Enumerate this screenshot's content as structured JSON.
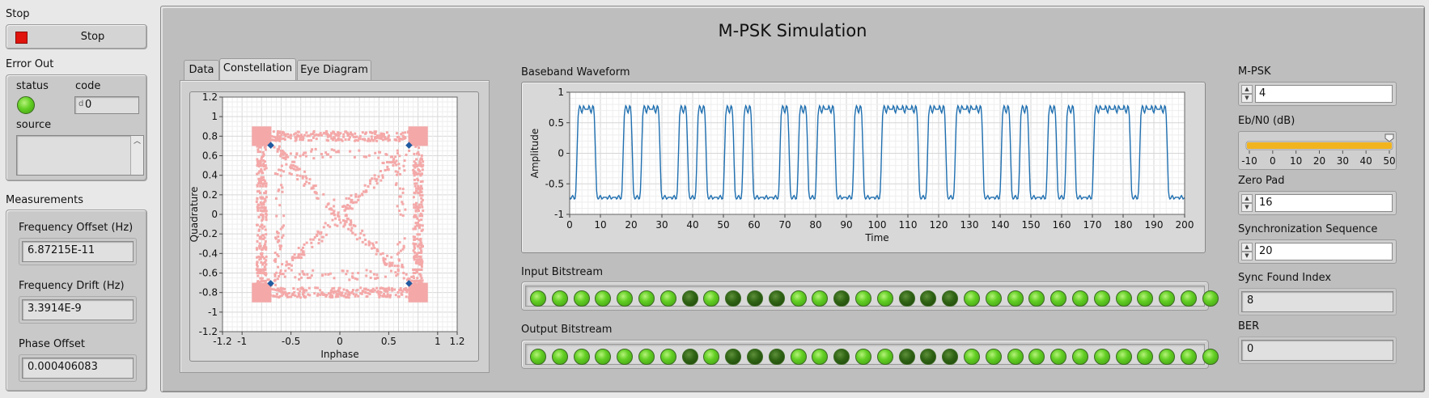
{
  "stop": {
    "label": "Stop",
    "button_label": "Stop"
  },
  "error_out": {
    "label": "Error Out",
    "status_label": "status",
    "code_label": "code",
    "code_value": "0",
    "source_label": "source",
    "source_value": ""
  },
  "measurements": {
    "label": "Measurements",
    "freq_offset_label": "Frequency Offset (Hz)",
    "freq_offset_value": "6.87215E-11",
    "freq_drift_label": "Frequency Drift (Hz)",
    "freq_drift_value": "3.3914E-9",
    "phase_offset_label": "Phase Offset",
    "phase_offset_value": "0.000406083"
  },
  "title": "M-PSK Simulation",
  "tabs": [
    {
      "label": "Data",
      "active": false
    },
    {
      "label": "Constellation",
      "active": true
    },
    {
      "label": "Eye Diagram",
      "active": false
    }
  ],
  "constellation": {
    "xlabel": "Inphase",
    "ylabel": "Quadrature",
    "x_ticks": [
      "-1.2",
      "-1",
      "-0.5",
      "0",
      "0.5",
      "1",
      "1.2"
    ],
    "y_ticks": [
      "1.2",
      "1",
      "0.8",
      "0.6",
      "0.4",
      "0.2",
      "0",
      "-0.2",
      "-0.4",
      "-0.6",
      "-0.8",
      "-1",
      "-1.2"
    ],
    "points": [
      [
        -0.707,
        0.707
      ],
      [
        0.707,
        0.707
      ],
      [
        -0.707,
        -0.707
      ],
      [
        0.707,
        -0.707
      ]
    ],
    "colors": {
      "cloud": "#f4a8a8",
      "points": "#1f5aa0"
    }
  },
  "waveform": {
    "label": "Baseband Waveform",
    "xlabel": "Time",
    "ylabel": "Amplitude",
    "x_ticks": [
      "0",
      "10",
      "20",
      "30",
      "40",
      "50",
      "60",
      "70",
      "80",
      "90",
      "100",
      "110",
      "120",
      "130",
      "140",
      "150",
      "160",
      "170",
      "180",
      "190",
      "200"
    ],
    "y_ticks": [
      "1",
      "0.5",
      "0",
      "-0.5",
      "-1"
    ],
    "color": "#1f6fb0"
  },
  "chart_data": [
    {
      "type": "scatter",
      "title": "",
      "xlabel": "Inphase",
      "ylabel": "Quadrature",
      "xlim": [
        -1.2,
        1.2
      ],
      "ylim": [
        -1.2,
        1.2
      ],
      "grid": true,
      "series": [
        {
          "x": [
            -0.707,
            0.707,
            -0.707,
            0.707
          ],
          "y": [
            0.707,
            0.707,
            -0.707,
            -0.707
          ]
        }
      ]
    },
    {
      "type": "line",
      "title": "",
      "xlabel": "Time",
      "ylabel": "Amplitude",
      "xlim": [
        0,
        200
      ],
      "ylim": [
        -1,
        1
      ],
      "grid": true,
      "symbols": [
        0,
        1,
        1,
        0,
        0,
        0,
        1,
        0,
        1,
        1,
        0,
        0,
        1,
        0,
        1,
        0,
        0,
        1,
        0,
        1,
        0,
        0,
        0,
        1,
        0,
        1,
        0,
        1,
        1,
        0,
        0,
        1,
        0,
        0,
        1,
        1,
        1,
        1,
        0,
        1,
        1,
        0,
        1,
        1,
        1,
        0,
        0,
        1,
        0,
        1,
        0,
        0,
        1,
        0,
        1,
        0,
        0,
        1,
        1,
        1,
        1,
        0,
        1,
        1,
        1,
        0,
        0,
        0
      ],
      "samples_per_symbol": 3,
      "levels": [
        -0.72,
        0.72
      ]
    }
  ],
  "input_bitstream": {
    "label": "Input Bitstream",
    "bits": [
      1,
      1,
      1,
      1,
      1,
      1,
      1,
      0,
      1,
      0,
      0,
      0,
      1,
      1,
      0,
      1,
      1,
      0,
      0,
      0,
      1,
      1,
      1,
      1,
      1,
      1,
      1,
      1,
      1,
      1,
      1,
      1
    ]
  },
  "output_bitstream": {
    "label": "Output Bitstream",
    "bits": [
      1,
      1,
      1,
      1,
      1,
      1,
      1,
      0,
      1,
      0,
      0,
      0,
      1,
      1,
      0,
      1,
      1,
      0,
      0,
      0,
      1,
      1,
      1,
      1,
      1,
      1,
      1,
      1,
      1,
      1,
      1,
      1
    ]
  },
  "controls": {
    "mpsk_label": "M-PSK",
    "mpsk_value": "4",
    "ebn0_label": "Eb/N0 (dB)",
    "ebn0_value": 50,
    "ebn0_ticks": [
      "-10",
      "0",
      "10",
      "20",
      "30",
      "40",
      "50"
    ],
    "zero_pad_label": "Zero Pad",
    "zero_pad_value": "16",
    "sync_seq_label": "Synchronization Sequence",
    "sync_seq_value": "20",
    "sync_found_label": "Sync Found Index",
    "sync_found_value": "8",
    "ber_label": "BER",
    "ber_value": "0"
  },
  "colors": {
    "stop_red": "#e0140c",
    "led_on": "#5ccc22",
    "led_off": "#2c6012",
    "slider": "#f2b41e"
  }
}
